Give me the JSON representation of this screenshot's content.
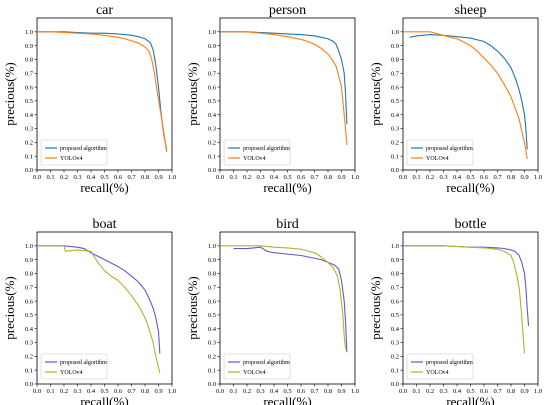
{
  "chart_data": [
    {
      "type": "line",
      "title": "car",
      "xlabel": "recall(%)",
      "ylabel": "precious(%)",
      "xlim": [
        0,
        1
      ],
      "ylim": [
        0,
        1.1
      ],
      "ticks": [
        "0.0",
        "0.1",
        "0.2",
        "0.3",
        "0.4",
        "0.5",
        "0.6",
        "0.7",
        "0.8",
        "0.9",
        "1.0"
      ],
      "legend": "bottom-left",
      "series": [
        {
          "name": "proposed algorithm",
          "color": "#1f77b4",
          "x": [
            0.0,
            0.1,
            0.2,
            0.3,
            0.4,
            0.5,
            0.6,
            0.7,
            0.75,
            0.8,
            0.84,
            0.86,
            0.88,
            0.9,
            0.92,
            0.94,
            0.96
          ],
          "y": [
            1.0,
            1.0,
            1.0,
            0.995,
            0.99,
            0.99,
            0.985,
            0.975,
            0.965,
            0.95,
            0.92,
            0.87,
            0.76,
            0.6,
            0.4,
            0.25,
            0.15
          ]
        },
        {
          "name": "YOLOv4",
          "color": "#ff7f0e",
          "x": [
            0.0,
            0.1,
            0.2,
            0.3,
            0.4,
            0.5,
            0.6,
            0.65,
            0.7,
            0.75,
            0.8,
            0.83,
            0.85,
            0.87,
            0.89,
            0.91,
            0.93,
            0.95,
            0.96
          ],
          "y": [
            1.0,
            1.0,
            0.995,
            0.99,
            0.985,
            0.975,
            0.96,
            0.95,
            0.935,
            0.92,
            0.89,
            0.86,
            0.8,
            0.7,
            0.57,
            0.45,
            0.33,
            0.2,
            0.13
          ]
        }
      ]
    },
    {
      "type": "line",
      "title": "person",
      "xlabel": "recall(%)",
      "ylabel": "precious(%)",
      "xlim": [
        0,
        1
      ],
      "ylim": [
        0,
        1.1
      ],
      "ticks": [
        "0.0",
        "0.1",
        "0.2",
        "0.3",
        "0.4",
        "0.5",
        "0.6",
        "0.7",
        "0.8",
        "0.9",
        "1.0"
      ],
      "legend": "bottom-left",
      "series": [
        {
          "name": "proposed algorithm",
          "color": "#1f77b4",
          "x": [
            0.0,
            0.1,
            0.2,
            0.3,
            0.4,
            0.5,
            0.6,
            0.7,
            0.75,
            0.8,
            0.84,
            0.86,
            0.88,
            0.9,
            0.92,
            0.93,
            0.94
          ],
          "y": [
            1.0,
            1.0,
            1.0,
            0.995,
            0.99,
            0.985,
            0.98,
            0.97,
            0.96,
            0.95,
            0.93,
            0.91,
            0.86,
            0.8,
            0.7,
            0.55,
            0.33
          ]
        },
        {
          "name": "YOLOv4",
          "color": "#ff7f0e",
          "x": [
            0.0,
            0.1,
            0.2,
            0.3,
            0.4,
            0.5,
            0.6,
            0.65,
            0.7,
            0.75,
            0.8,
            0.83,
            0.86,
            0.88,
            0.9,
            0.92,
            0.94
          ],
          "y": [
            1.0,
            1.0,
            1.0,
            0.99,
            0.98,
            0.965,
            0.945,
            0.93,
            0.91,
            0.88,
            0.84,
            0.8,
            0.75,
            0.68,
            0.6,
            0.4,
            0.18
          ]
        }
      ]
    },
    {
      "type": "line",
      "title": "sheep",
      "xlabel": "recall(%)",
      "ylabel": "precious(%)",
      "xlim": [
        0,
        1
      ],
      "ylim": [
        0,
        1.1
      ],
      "ticks": [
        "0.0",
        "0.1",
        "0.2",
        "0.3",
        "0.4",
        "0.5",
        "0.6",
        "0.7",
        "0.8",
        "0.9",
        "1.0"
      ],
      "legend": "bottom-left",
      "series": [
        {
          "name": "proposed algorithm",
          "color": "#1f77b4",
          "x": [
            0.05,
            0.1,
            0.2,
            0.3,
            0.4,
            0.5,
            0.6,
            0.65,
            0.7,
            0.75,
            0.8,
            0.83,
            0.86,
            0.88,
            0.9,
            0.91,
            0.92
          ],
          "y": [
            0.96,
            0.97,
            0.98,
            0.975,
            0.965,
            0.955,
            0.93,
            0.9,
            0.86,
            0.81,
            0.74,
            0.67,
            0.58,
            0.5,
            0.4,
            0.3,
            0.15
          ]
        },
        {
          "name": "YOLOv4",
          "color": "#ff7f0e",
          "x": [
            0.0,
            0.1,
            0.2,
            0.3,
            0.35,
            0.4,
            0.5,
            0.55,
            0.6,
            0.65,
            0.7,
            0.75,
            0.8,
            0.83,
            0.86,
            0.88,
            0.9,
            0.92
          ],
          "y": [
            1.0,
            1.0,
            1.0,
            0.975,
            0.96,
            0.95,
            0.9,
            0.86,
            0.81,
            0.76,
            0.7,
            0.62,
            0.53,
            0.45,
            0.37,
            0.28,
            0.2,
            0.08
          ]
        }
      ]
    },
    {
      "type": "line",
      "title": "boat",
      "xlabel": "recall(%)",
      "ylabel": "precious(%)",
      "xlim": [
        0,
        1
      ],
      "ylim": [
        0,
        1.1
      ],
      "ticks": [
        "0.0",
        "0.1",
        "0.2",
        "0.3",
        "0.4",
        "0.5",
        "0.6",
        "0.7",
        "0.8",
        "0.9",
        "1.0"
      ],
      "legend": "bottom-left",
      "series": [
        {
          "name": "proposed algorithm",
          "color": "#5b5bd6",
          "x": [
            0.0,
            0.1,
            0.2,
            0.3,
            0.35,
            0.4,
            0.5,
            0.6,
            0.65,
            0.7,
            0.75,
            0.8,
            0.83,
            0.86,
            0.88,
            0.9,
            0.91
          ],
          "y": [
            1.0,
            1.0,
            1.0,
            0.99,
            0.98,
            0.95,
            0.9,
            0.85,
            0.82,
            0.78,
            0.74,
            0.68,
            0.62,
            0.55,
            0.48,
            0.38,
            0.22
          ]
        },
        {
          "name": "YOLOv4",
          "color": "#b8b02a",
          "x": [
            0.0,
            0.1,
            0.2,
            0.21,
            0.3,
            0.4,
            0.45,
            0.5,
            0.55,
            0.6,
            0.65,
            0.7,
            0.75,
            0.8,
            0.83,
            0.86,
            0.88,
            0.9,
            0.91
          ],
          "y": [
            1.0,
            1.0,
            1.0,
            0.96,
            0.97,
            0.96,
            0.88,
            0.82,
            0.78,
            0.75,
            0.7,
            0.64,
            0.57,
            0.48,
            0.4,
            0.3,
            0.2,
            0.12,
            0.08
          ]
        }
      ]
    },
    {
      "type": "line",
      "title": "bird",
      "xlabel": "recall(%)",
      "ylabel": "precious(%)",
      "xlim": [
        0,
        1
      ],
      "ylim": [
        0,
        1.1
      ],
      "ticks": [
        "0.0",
        "0.1",
        "0.2",
        "0.3",
        "0.4",
        "0.5",
        "0.6",
        "0.7",
        "0.8",
        "0.9",
        "1.0"
      ],
      "legend": "bottom-left",
      "series": [
        {
          "name": "proposed algorithm",
          "color": "#5b5bd6",
          "x": [
            0.1,
            0.2,
            0.3,
            0.35,
            0.4,
            0.5,
            0.6,
            0.7,
            0.75,
            0.8,
            0.85,
            0.88,
            0.9,
            0.92,
            0.93,
            0.94
          ],
          "y": [
            0.98,
            0.98,
            0.99,
            0.96,
            0.95,
            0.94,
            0.93,
            0.91,
            0.9,
            0.88,
            0.86,
            0.83,
            0.75,
            0.6,
            0.45,
            0.23
          ]
        },
        {
          "name": "YOLOv4",
          "color": "#b8b02a",
          "x": [
            0.0,
            0.1,
            0.2,
            0.3,
            0.4,
            0.5,
            0.6,
            0.7,
            0.75,
            0.8,
            0.84,
            0.87,
            0.89,
            0.91,
            0.92,
            0.93
          ],
          "y": [
            1.0,
            1.0,
            1.0,
            1.0,
            0.99,
            0.985,
            0.975,
            0.95,
            0.92,
            0.88,
            0.84,
            0.78,
            0.68,
            0.5,
            0.35,
            0.25
          ]
        }
      ]
    },
    {
      "type": "line",
      "title": "bottle",
      "xlabel": "recall(%)",
      "ylabel": "precious(%)",
      "xlim": [
        0,
        1
      ],
      "ylim": [
        0,
        1.1
      ],
      "ticks": [
        "0.0",
        "0.1",
        "0.2",
        "0.3",
        "0.4",
        "0.5",
        "0.6",
        "0.7",
        "0.8",
        "0.9",
        "1.0"
      ],
      "legend": "bottom-left",
      "series": [
        {
          "name": "proposed algorithm",
          "color": "#5b5bd6",
          "x": [
            0.0,
            0.1,
            0.2,
            0.3,
            0.4,
            0.5,
            0.6,
            0.7,
            0.75,
            0.8,
            0.83,
            0.86,
            0.88,
            0.9,
            0.91,
            0.92,
            0.93
          ],
          "y": [
            1.0,
            1.0,
            1.0,
            1.0,
            0.995,
            0.99,
            0.99,
            0.985,
            0.98,
            0.97,
            0.96,
            0.93,
            0.88,
            0.8,
            0.7,
            0.55,
            0.42
          ]
        },
        {
          "name": "YOLOv4",
          "color": "#b8b02a",
          "x": [
            0.0,
            0.1,
            0.2,
            0.3,
            0.4,
            0.5,
            0.6,
            0.7,
            0.75,
            0.8,
            0.82,
            0.84,
            0.86,
            0.87,
            0.88,
            0.89,
            0.9
          ],
          "y": [
            1.0,
            1.0,
            1.0,
            1.0,
            0.995,
            0.99,
            0.985,
            0.975,
            0.96,
            0.93,
            0.88,
            0.8,
            0.7,
            0.6,
            0.48,
            0.35,
            0.22
          ]
        }
      ]
    }
  ]
}
